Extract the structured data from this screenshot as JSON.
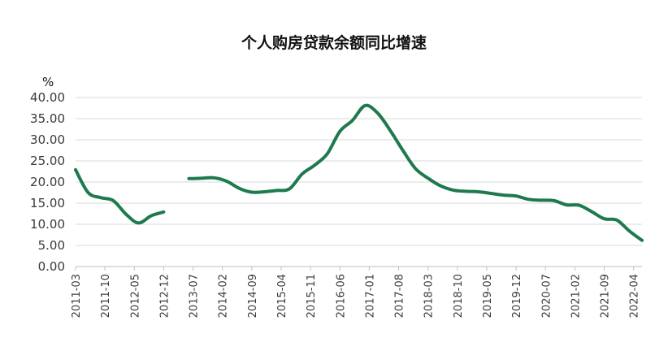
{
  "chart_data": {
    "type": "line",
    "title": "个人购房贷款余额同比增速",
    "ylabel": "%",
    "xlabel": "",
    "ylim": [
      0,
      40
    ],
    "yticks": [
      "0.00",
      "5.00",
      "10.00",
      "15.00",
      "20.00",
      "25.00",
      "30.00",
      "35.00",
      "40.00"
    ],
    "xticks": [
      "2011-03",
      "2011-10",
      "2012-05",
      "2012-12",
      "2013-07",
      "2014-02",
      "2014-09",
      "2015-04",
      "2015-11",
      "2016-06",
      "2017-01",
      "2017-08",
      "2018-03",
      "2018-10",
      "2019-05",
      "2019-12",
      "2020-07",
      "2021-02",
      "2021-09",
      "2022-04"
    ],
    "grid": true,
    "legend": "none",
    "color": "#1e7a4e",
    "series": [
      {
        "segments": [
          [
            {
              "x": "2011-03",
              "y": 22.9
            },
            {
              "x": "2011-06",
              "y": 17.5
            },
            {
              "x": "2011-09",
              "y": 16.3
            },
            {
              "x": "2011-12",
              "y": 15.6
            },
            {
              "x": "2012-03",
              "y": 12.4
            },
            {
              "x": "2012-06",
              "y": 10.3
            },
            {
              "x": "2012-09",
              "y": 12.0
            },
            {
              "x": "2012-12",
              "y": 12.9
            }
          ],
          [
            {
              "x": "2013-06",
              "y": 20.8
            },
            {
              "x": "2013-09",
              "y": 20.9
            },
            {
              "x": "2013-12",
              "y": 21.0
            },
            {
              "x": "2014-03",
              "y": 20.2
            },
            {
              "x": "2014-06",
              "y": 18.5
            },
            {
              "x": "2014-09",
              "y": 17.6
            },
            {
              "x": "2014-12",
              "y": 17.7
            },
            {
              "x": "2015-03",
              "y": 18.0
            },
            {
              "x": "2015-06",
              "y": 18.4
            },
            {
              "x": "2015-09",
              "y": 21.9
            },
            {
              "x": "2015-12",
              "y": 24.0
            },
            {
              "x": "2016-03",
              "y": 26.7
            },
            {
              "x": "2016-06",
              "y": 32.0
            },
            {
              "x": "2016-09",
              "y": 34.6
            },
            {
              "x": "2016-12",
              "y": 38.1
            },
            {
              "x": "2017-03",
              "y": 36.3
            },
            {
              "x": "2017-06",
              "y": 32.2
            },
            {
              "x": "2017-09",
              "y": 27.5
            },
            {
              "x": "2017-12",
              "y": 23.2
            },
            {
              "x": "2018-03",
              "y": 20.9
            },
            {
              "x": "2018-06",
              "y": 19.1
            },
            {
              "x": "2018-09",
              "y": 18.1
            },
            {
              "x": "2018-12",
              "y": 17.8
            },
            {
              "x": "2019-03",
              "y": 17.7
            },
            {
              "x": "2019-06",
              "y": 17.3
            },
            {
              "x": "2019-09",
              "y": 16.9
            },
            {
              "x": "2019-12",
              "y": 16.7
            },
            {
              "x": "2020-03",
              "y": 15.9
            },
            {
              "x": "2020-06",
              "y": 15.7
            },
            {
              "x": "2020-09",
              "y": 15.6
            },
            {
              "x": "2020-12",
              "y": 14.6
            },
            {
              "x": "2021-03",
              "y": 14.5
            },
            {
              "x": "2021-06",
              "y": 13.0
            },
            {
              "x": "2021-09",
              "y": 11.3
            },
            {
              "x": "2021-12",
              "y": 11.0
            },
            {
              "x": "2022-03",
              "y": 8.4
            },
            {
              "x": "2022-06",
              "y": 6.2
            }
          ]
        ]
      }
    ]
  }
}
